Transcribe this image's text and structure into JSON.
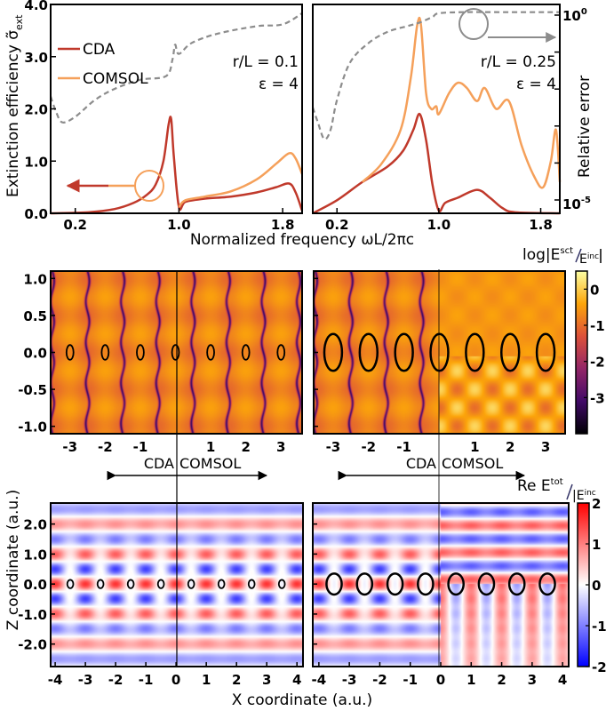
{
  "colors": {
    "cda": "#c0392b",
    "comsol": "#f5a05a",
    "error": "#8c8c8c",
    "axis": "#000000"
  },
  "labels": {
    "y_left_top": "Extinction efficiency σ̃",
    "y_left_top_sub": "ext",
    "y_right_top": "Relative error",
    "x_top": "Normalized frequency ωL/2πc",
    "y_bottom": "Z coordinate (a.u.)",
    "x_bottom": "X coordinate (a.u.)",
    "cbar1": "log|E",
    "cbar1_sup": "sct",
    "cbar1_den": "E",
    "cbar1_den_sup": "inc",
    "cbar2": "Re E",
    "cbar2_sup": "tot",
    "cbar2_den": "|E",
    "cbar2_den_sup": "inc",
    "cda": "CDA",
    "comsol": "COMSOL"
  },
  "chart_data": [
    {
      "type": "line",
      "panel": "top-left",
      "annotation": [
        "r/L = 0.1",
        "ε = 4"
      ],
      "xlim": [
        0.01,
        1.95
      ],
      "ylim": [
        0,
        4.0
      ],
      "xticks": [
        "0.2",
        "1.0",
        "1.8"
      ],
      "xtick_values": [
        0.2,
        1.0,
        1.8
      ],
      "yticks": [
        "0.0",
        "1.0",
        "2.0",
        "3.0",
        "4.0"
      ],
      "legend": "top-left",
      "series": [
        {
          "name": "CDA",
          "axis": "left",
          "x": [
            0.01,
            0.3,
            0.5,
            0.65,
            0.75,
            0.82,
            0.88,
            0.92,
            0.94,
            0.96,
            1.0,
            1.05,
            1.2,
            1.4,
            1.6,
            1.75,
            1.85,
            1.9,
            1.95
          ],
          "y": [
            0,
            0.02,
            0.08,
            0.2,
            0.35,
            0.55,
            1.0,
            1.7,
            1.8,
            1.1,
            0.12,
            0.22,
            0.28,
            0.32,
            0.4,
            0.5,
            0.57,
            0.4,
            0.05
          ]
        },
        {
          "name": "COMSOL",
          "axis": "left",
          "x": [
            1.0,
            1.05,
            1.2,
            1.4,
            1.6,
            1.75,
            1.85,
            1.9,
            1.95
          ],
          "y": [
            0.12,
            0.25,
            0.32,
            0.42,
            0.65,
            0.95,
            1.15,
            1.05,
            0.75
          ]
        },
        {
          "name": "",
          "axis": "right",
          "style": "dashed",
          "x": [
            0.01,
            0.05,
            0.1,
            0.2,
            0.35,
            0.5,
            0.7,
            0.9,
            0.95,
            0.97,
            1.0,
            1.1,
            1.3,
            1.6,
            1.8,
            1.95
          ],
          "y": [
            -2.2,
            -2.6,
            -2.9,
            -2.75,
            -2.3,
            -2.0,
            -1.75,
            -1.65,
            -1.2,
            -0.8,
            -1.05,
            -0.75,
            -0.5,
            -0.3,
            -0.25,
            0.05
          ]
        }
      ],
      "y2_scale": "log",
      "y2ticks": [
        "10^0",
        "10^-5"
      ],
      "y2lim_log10": [
        -5.2,
        0.1
      ]
    },
    {
      "type": "line",
      "panel": "top-right",
      "annotation": [
        "r/L = 0.25",
        "ε = 4"
      ],
      "xlim": [
        0.01,
        1.95
      ],
      "ylim": [
        0,
        4.0
      ],
      "xticks": [
        "0.2",
        "1.0",
        "1.8"
      ],
      "xtick_values": [
        0.2,
        1.0,
        1.8
      ],
      "series": [
        {
          "name": "CDA",
          "axis": "left",
          "x": [
            0.01,
            0.2,
            0.4,
            0.6,
            0.72,
            0.8,
            0.85,
            0.9,
            0.95,
            1.0,
            1.05,
            1.15,
            1.3,
            1.4,
            1.5,
            1.6,
            1.95
          ],
          "y": [
            0,
            0.25,
            0.6,
            0.9,
            1.2,
            1.6,
            1.9,
            1.4,
            0.55,
            0.05,
            0.2,
            0.3,
            0.45,
            0.3,
            0.1,
            0.02,
            0
          ]
        },
        {
          "name": "COMSOL",
          "axis": "left",
          "x": [
            0.4,
            0.55,
            0.7,
            0.78,
            0.83,
            0.86,
            0.9,
            0.94,
            0.98,
            1.0,
            1.08,
            1.15,
            1.22,
            1.3,
            1.36,
            1.45,
            1.55,
            1.65,
            1.75,
            1.82,
            1.88,
            1.92,
            1.95
          ],
          "y": [
            0.6,
            0.95,
            1.6,
            2.6,
            3.6,
            3.6,
            2.3,
            2.0,
            2.05,
            1.9,
            2.3,
            2.5,
            2.4,
            2.15,
            2.4,
            2.0,
            2.15,
            1.3,
            0.7,
            0.5,
            1.0,
            1.6,
            0.6
          ]
        },
        {
          "name": "",
          "axis": "right",
          "style": "dashed",
          "x": [
            0.01,
            0.05,
            0.1,
            0.15,
            0.2,
            0.3,
            0.45,
            0.6,
            0.75,
            0.85,
            0.95,
            1.0,
            1.2,
            1.5,
            1.95
          ],
          "y": [
            -2.5,
            -2.9,
            -3.35,
            -3.1,
            -2.3,
            -1.3,
            -0.75,
            -0.45,
            -0.3,
            -0.2,
            -0.05,
            0.05,
            0.08,
            0.08,
            0.08
          ]
        }
      ]
    },
    {
      "type": "heatmap",
      "panel": "middle",
      "colorbar_ticks": [
        "0",
        "-1",
        "-2",
        "-3"
      ],
      "colormap": "inferno",
      "xticks": [
        "-3",
        "-2",
        "-1",
        "1",
        "2",
        "3"
      ],
      "yticks": [
        "1.0",
        "0.5",
        "0.0",
        "-0.5",
        "-1.0"
      ],
      "xlim": [
        -3.5,
        3.5
      ],
      "ylim": [
        -1.1,
        1.1
      ],
      "clim": [
        -4,
        0.5
      ]
    },
    {
      "type": "heatmap",
      "panel": "bottom",
      "colorbar_ticks": [
        "2",
        "1",
        "0",
        "-1",
        "-2"
      ],
      "colormap": "bwr",
      "xticks": [
        "-4",
        "-3",
        "-2",
        "-1",
        "0",
        "1",
        "2",
        "3",
        "4"
      ],
      "yticks": [
        "2.0",
        "1.0",
        "0.0",
        "-1.0",
        "-2.0"
      ],
      "xlim": [
        -4.2,
        4.2
      ],
      "ylim": [
        -2.75,
        2.7
      ],
      "clim": [
        -2,
        2
      ]
    }
  ]
}
